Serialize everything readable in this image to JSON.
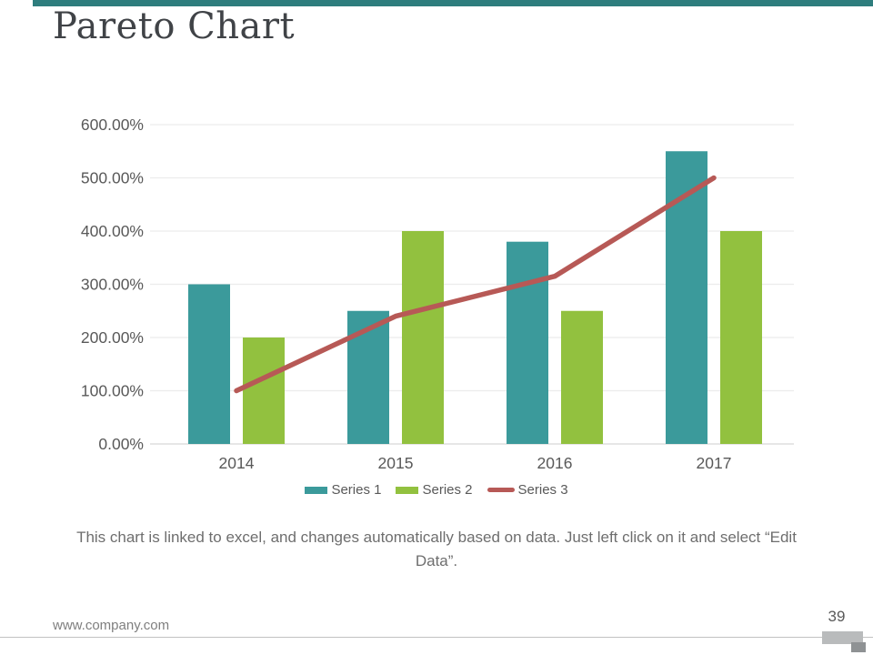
{
  "slide": {
    "title": "Pareto Chart",
    "caption": "This chart is linked to excel, and changes automatically based on data. Just left click on it and select “Edit Data”.",
    "footer": {
      "website": "www.company.com",
      "page_number": "39"
    },
    "colors": {
      "accent_bar": "#2e7d7d",
      "series1": "#3b9a9b",
      "series2": "#92c13f",
      "series3": "#b75956",
      "gridline": "#ececec",
      "axis_baseline": "#d6d6d6",
      "axis_text": "#595959"
    }
  },
  "chart_data": {
    "type": "bar",
    "subtype": "combo-bar-line (pareto)",
    "categories": [
      "2014",
      "2015",
      "2016",
      "2017"
    ],
    "series": [
      {
        "name": "Series 1",
        "kind": "bar",
        "color": "#3b9a9b",
        "values_percent": [
          300,
          250,
          380,
          550
        ]
      },
      {
        "name": "Series 2",
        "kind": "bar",
        "color": "#92c13f",
        "values_percent": [
          200,
          400,
          250,
          400
        ]
      },
      {
        "name": "Series 3",
        "kind": "line",
        "color": "#b75956",
        "values_percent": [
          100,
          240,
          315,
          500
        ]
      }
    ],
    "title": "",
    "xlabel": "",
    "ylabel": "",
    "y_axis": {
      "min_percent": 0,
      "max_percent": 600,
      "step_percent": 100,
      "tick_labels": [
        "0.00%",
        "100.00%",
        "200.00%",
        "300.00%",
        "400.00%",
        "500.00%",
        "600.00%"
      ]
    },
    "grid": true,
    "legend_position": "bottom",
    "legend_entries": [
      "Series 1",
      "Series 2",
      "Series 3"
    ]
  }
}
